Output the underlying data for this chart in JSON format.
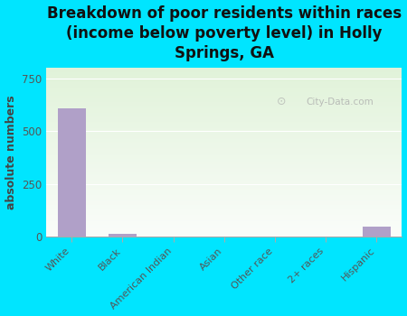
{
  "title": "Breakdown of poor residents within races\n(income below poverty level) in Holly\nSprings, GA",
  "categories": [
    "White",
    "Black",
    "American Indian",
    "Asian",
    "Other race",
    "2+ races",
    "Hispanic"
  ],
  "values": [
    610,
    15,
    0,
    0,
    0,
    0,
    50
  ],
  "bar_color": "#b0a0c8",
  "ylabel": "absolute numbers",
  "ylim": [
    0,
    800
  ],
  "yticks": [
    0,
    250,
    500,
    750
  ],
  "background_color": "#00e5ff",
  "watermark": "City-Data.com",
  "title_fontsize": 12,
  "ylabel_fontsize": 9
}
